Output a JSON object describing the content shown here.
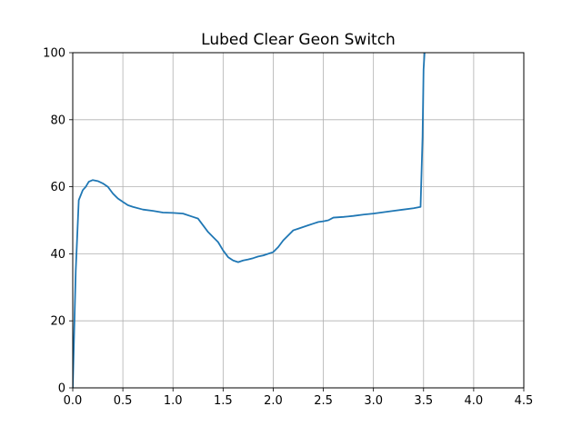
{
  "chart_data": {
    "type": "line",
    "title": "Lubed Clear Geon Switch",
    "xlabel": "",
    "ylabel": "",
    "xlim": [
      0,
      4.5
    ],
    "ylim": [
      0,
      100
    ],
    "x_ticks": [
      "0.0",
      "0.5",
      "1.0",
      "1.5",
      "2.0",
      "2.5",
      "3.0",
      "3.5",
      "4.0",
      "4.5"
    ],
    "y_ticks": [
      "0",
      "20",
      "40",
      "60",
      "80",
      "100"
    ],
    "grid": true,
    "legend": "none",
    "series": [
      {
        "color": "#1f77b4",
        "x": [
          0.0,
          0.03,
          0.06,
          0.1,
          0.13,
          0.16,
          0.2,
          0.25,
          0.3,
          0.35,
          0.4,
          0.45,
          0.5,
          0.55,
          0.6,
          0.7,
          0.8,
          0.9,
          1.0,
          1.1,
          1.2,
          1.25,
          1.3,
          1.35,
          1.4,
          1.45,
          1.5,
          1.55,
          1.6,
          1.65,
          1.7,
          1.75,
          1.8,
          1.85,
          1.9,
          1.95,
          2.0,
          2.05,
          2.1,
          2.15,
          2.2,
          2.25,
          2.3,
          2.35,
          2.4,
          2.45,
          2.5,
          2.55,
          2.6,
          2.7,
          2.8,
          2.9,
          3.0,
          3.1,
          3.2,
          3.3,
          3.4,
          3.47,
          3.49,
          3.5,
          3.51
        ],
        "y": [
          0,
          35,
          56,
          59,
          60,
          61.5,
          62,
          61.7,
          61,
          60,
          58,
          56.5,
          55.5,
          54.5,
          54,
          53.2,
          52.8,
          52.3,
          52.2,
          52,
          51,
          50.5,
          48.5,
          46.5,
          45,
          43.5,
          41,
          39,
          38,
          37.5,
          38,
          38.3,
          38.7,
          39.2,
          39.5,
          40,
          40.5,
          42,
          44,
          45.5,
          47,
          47.5,
          48,
          48.5,
          49,
          49.5,
          49.7,
          50,
          50.8,
          51,
          51.3,
          51.7,
          52,
          52.4,
          52.8,
          53.2,
          53.6,
          54,
          75,
          95,
          100
        ]
      }
    ]
  }
}
